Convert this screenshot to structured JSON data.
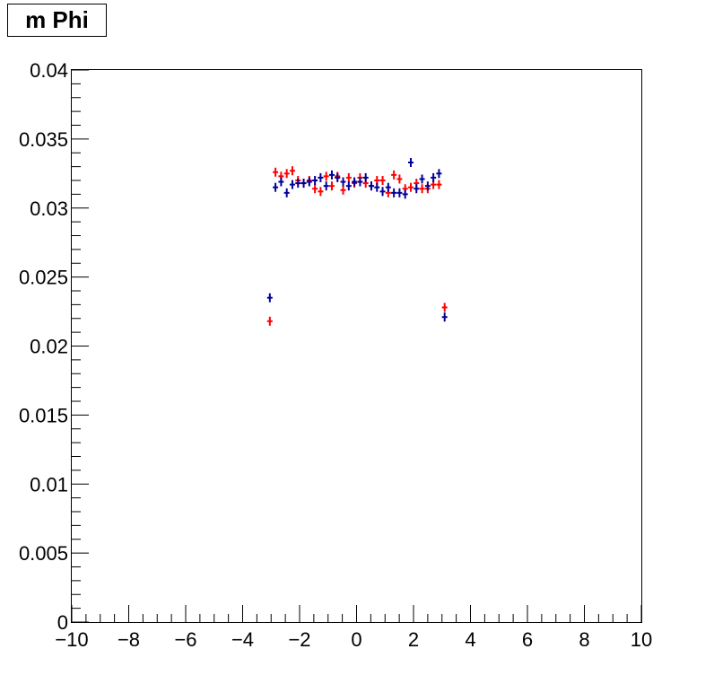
{
  "title": "m Phi",
  "chart_data": {
    "type": "scatter",
    "title": "m Phi",
    "xlabel": "",
    "ylabel": "",
    "xlim": [
      -10,
      10
    ],
    "ylim": [
      0,
      0.04
    ],
    "x_ticks": [
      -10,
      -8,
      -6,
      -4,
      -2,
      0,
      2,
      4,
      6,
      8,
      10
    ],
    "x_tick_labels": [
      "−10",
      "−8",
      "−6",
      "−4",
      "−2",
      "0",
      "2",
      "4",
      "6",
      "8",
      "10"
    ],
    "y_ticks": [
      0,
      0.005,
      0.01,
      0.015,
      0.02,
      0.025,
      0.03,
      0.035,
      0.04
    ],
    "y_tick_labels": [
      "0",
      "0.005",
      "0.01",
      "0.015",
      "0.02",
      "0.025",
      "0.03",
      "0.035",
      "0.04"
    ],
    "grid": false,
    "colors": {
      "red": "#ff0000",
      "blue": "#000099"
    },
    "x": [
      -3.045,
      -2.847,
      -2.649,
      -2.451,
      -2.253,
      -2.055,
      -1.857,
      -1.659,
      -1.461,
      -1.263,
      -1.065,
      -0.867,
      -0.669,
      -0.471,
      -0.273,
      -0.075,
      0.123,
      0.321,
      0.519,
      0.717,
      0.915,
      1.113,
      1.311,
      1.509,
      1.707,
      1.905,
      2.103,
      2.301,
      2.499,
      2.697,
      2.895,
      3.093
    ],
    "series": [
      {
        "color": "red",
        "y": [
          0.0218,
          0.0326,
          0.0323,
          0.0325,
          0.0327,
          0.032,
          0.0318,
          0.032,
          0.0314,
          0.0312,
          0.0323,
          0.0316,
          0.0323,
          0.0313,
          0.0322,
          0.0318,
          0.0322,
          0.0318,
          0.0316,
          0.032,
          0.032,
          0.0311,
          0.0324,
          0.0321,
          0.0314,
          0.0315,
          0.0318,
          0.0314,
          0.0314,
          0.0317,
          0.0317,
          0.0228
        ]
      },
      {
        "color": "blue",
        "y": [
          0.0235,
          0.0315,
          0.0319,
          0.0311,
          0.0317,
          0.0318,
          0.0318,
          0.0319,
          0.032,
          0.0322,
          0.0316,
          0.0324,
          0.0322,
          0.0319,
          0.0316,
          0.0319,
          0.0319,
          0.0322,
          0.0316,
          0.0315,
          0.0312,
          0.0315,
          0.0311,
          0.0311,
          0.031,
          0.0333,
          0.0314,
          0.0321,
          0.0316,
          0.0322,
          0.0325,
          0.0221
        ]
      }
    ]
  }
}
